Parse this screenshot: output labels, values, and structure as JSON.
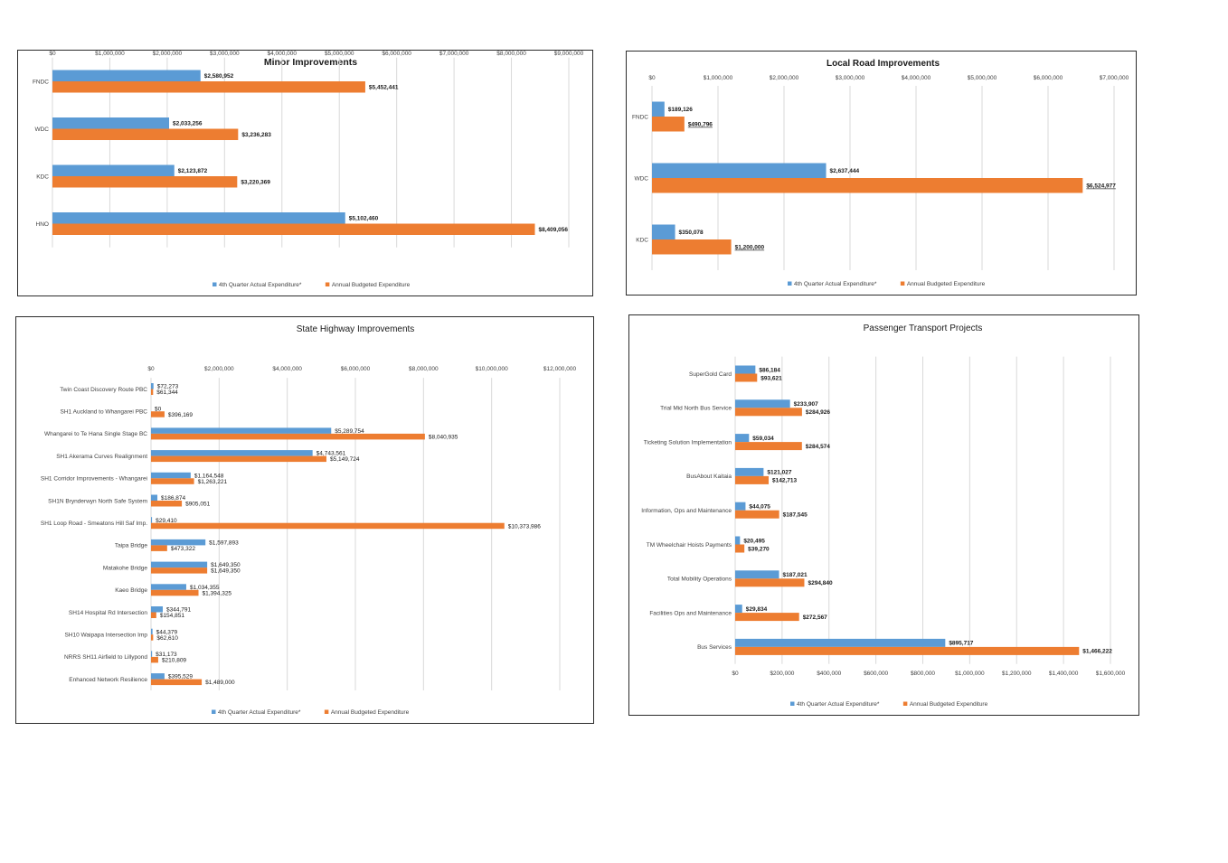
{
  "colors": {
    "actual": "#5b9bd5",
    "budget": "#ed7d31",
    "grid": "#d9d9d9",
    "text": "#404040"
  },
  "chart_data": [
    {
      "id": "minor",
      "type": "bar",
      "orientation": "horizontal",
      "title": "Minor Improvements",
      "title_bold": true,
      "axis_position": "top",
      "xlim": [
        0,
        9000000
      ],
      "ticks": [
        0,
        1000000,
        2000000,
        3000000,
        4000000,
        5000000,
        6000000,
        7000000,
        8000000,
        9000000
      ],
      "tick_labels": [
        "$0",
        "$1,000,000",
        "$2,000,000",
        "$3,000,000",
        "$4,000,000",
        "$5,000,000",
        "$6,000,000",
        "$7,000,000",
        "$8,000,000",
        "$9,000,000"
      ],
      "categories": [
        "FNDC",
        "WDC",
        "KDC",
        "HNO"
      ],
      "series": [
        {
          "name": "4th Quarter Actual Expenditure*",
          "values": [
            2580952,
            2033256,
            2123872,
            5102460
          ],
          "labels": [
            "$2,580,952",
            "$2,033,256",
            "$2,123,872",
            "$5,102,460"
          ]
        },
        {
          "name": "Annual Budgeted Expenditure",
          "values": [
            5452441,
            3236283,
            3220369,
            8409056
          ],
          "labels": [
            "$5,452,441",
            "$3,236,283",
            "$3,220,369",
            "$8,409,056"
          ]
        }
      ],
      "legend_position": "bottom"
    },
    {
      "id": "local",
      "type": "bar",
      "orientation": "horizontal",
      "title": "Local Road Improvements",
      "title_bold": true,
      "axis_position": "top",
      "xlim": [
        0,
        7000000
      ],
      "ticks": [
        0,
        1000000,
        2000000,
        3000000,
        4000000,
        5000000,
        6000000,
        7000000
      ],
      "tick_labels": [
        "$0",
        "$1,000,000",
        "$2,000,000",
        "$3,000,000",
        "$4,000,000",
        "$5,000,000",
        "$6,000,000",
        "$7,000,000"
      ],
      "categories": [
        "FNDC",
        "WDC",
        "KDC"
      ],
      "series": [
        {
          "name": "4th Quarter Actual Expenditure*",
          "values": [
            189126,
            2637444,
            350078
          ],
          "labels": [
            "$189,126",
            "$2,637,444",
            "$350,078"
          ]
        },
        {
          "name": "Annual Budgeted Expenditure",
          "values": [
            490796,
            6524977,
            1200000
          ],
          "labels": [
            "$490,796",
            "$6,524,977",
            "$1,200,000"
          ]
        }
      ],
      "legend_position": "bottom"
    },
    {
      "id": "state",
      "type": "bar",
      "orientation": "horizontal",
      "title": "State Highway Improvements",
      "title_bold": false,
      "axis_position": "top",
      "xlim": [
        0,
        12000000
      ],
      "ticks": [
        0,
        2000000,
        4000000,
        6000000,
        8000000,
        10000000,
        12000000
      ],
      "tick_labels": [
        "$0",
        "$2,000,000",
        "$4,000,000",
        "$6,000,000",
        "$8,000,000",
        "$10,000,000",
        "$12,000,000"
      ],
      "categories": [
        "Twin Coast Discovery Route PBC",
        "SH1 Auckland to Whangarei PBC",
        "Whangarei to Te Hana Single Stage BC",
        "SH1 Akerama Curves Realignment",
        "SH1 Corridor Improvements - Whangarei",
        "SH1N Brynderwyn North Safe System",
        "SH1 Loop Road - Smeatons Hill Saf Imp.",
        "Taipa Bridge",
        "Matakohe Bridge",
        "Kaeo Bridge",
        "SH14 Hospital Rd Intersection",
        "SH10 Waipapa Intersection Imp",
        "NRRS SH11 Airfield to Lillypond",
        "Enhanced Network Resilience"
      ],
      "series": [
        {
          "name": "4th Quarter Actual Expenditure*",
          "values": [
            72273,
            0,
            5289754,
            4743561,
            1164548,
            186874,
            29410,
            1597893,
            1649350,
            1034355,
            344791,
            44379,
            31173,
            395529
          ],
          "labels": [
            "$72,273",
            "$0",
            "$5,289,754",
            "$4,743,561",
            "$1,164,548",
            "$186,874",
            "$29,410",
            "$1,597,893",
            "$1,649,350",
            "$1,034,355",
            "$344,791",
            "$44,379",
            "$31,173",
            "$395,529"
          ]
        },
        {
          "name": "Annual Budgeted Expenditure",
          "values": [
            61344,
            396169,
            8040935,
            5149724,
            1263221,
            905051,
            10373986,
            473322,
            1649350,
            1394325,
            154851,
            62610,
            210809,
            1489000
          ],
          "labels": [
            "$61,344",
            "$396,169",
            "$8,040,935",
            "$5,149,724",
            "$1,263,221",
            "$905,051",
            "$10,373,986",
            "$473,322",
            "$1,649,350",
            "$1,394,325",
            "$154,851",
            "$62,610",
            "$210,809",
            "$1,489,000"
          ]
        }
      ],
      "legend_position": "bottom"
    },
    {
      "id": "transport",
      "type": "bar",
      "orientation": "horizontal",
      "title": "Passenger Transport Projects",
      "title_bold": false,
      "axis_position": "bottom",
      "xlim": [
        0,
        1600000
      ],
      "ticks": [
        0,
        200000,
        400000,
        600000,
        800000,
        1000000,
        1200000,
        1400000,
        1600000
      ],
      "tick_labels": [
        "$0",
        "$200,000",
        "$400,000",
        "$600,000",
        "$800,000",
        "$1,000,000",
        "$1,200,000",
        "$1,400,000",
        "$1,600,000"
      ],
      "categories": [
        "SuperGold Card",
        "Trial Mid North Bus Service",
        "Ticketing Solution Implementation",
        "BusAbout Kaitaia",
        "Information, Ops and Maintenance",
        "TM  Wheelchair Hoists Payments",
        "Total Mobility Operations",
        "Facilities Ops and Maintenance",
        "Bus Services"
      ],
      "series": [
        {
          "name": "4th Quarter Actual Expenditure*",
          "values": [
            86184,
            233907,
            59034,
            121027,
            44075,
            20495,
            187021,
            29834,
            895717
          ],
          "labels": [
            "$86,184",
            "$233,907",
            "$59,034",
            "$121,027",
            "$44,075",
            "$20,495",
            "$187,021",
            "$29,834",
            "$895,717"
          ]
        },
        {
          "name": "Annual Budgeted Expenditure",
          "values": [
            93621,
            284926,
            284574,
            142713,
            187545,
            39270,
            294840,
            272567,
            1466222
          ],
          "labels": [
            "$93,621",
            "$284,926",
            "$284,574",
            "$142,713",
            "$187,545",
            "$39,270",
            "$294,840",
            "$272,567",
            "$1,466,222"
          ]
        }
      ],
      "legend_position": "bottom"
    }
  ]
}
